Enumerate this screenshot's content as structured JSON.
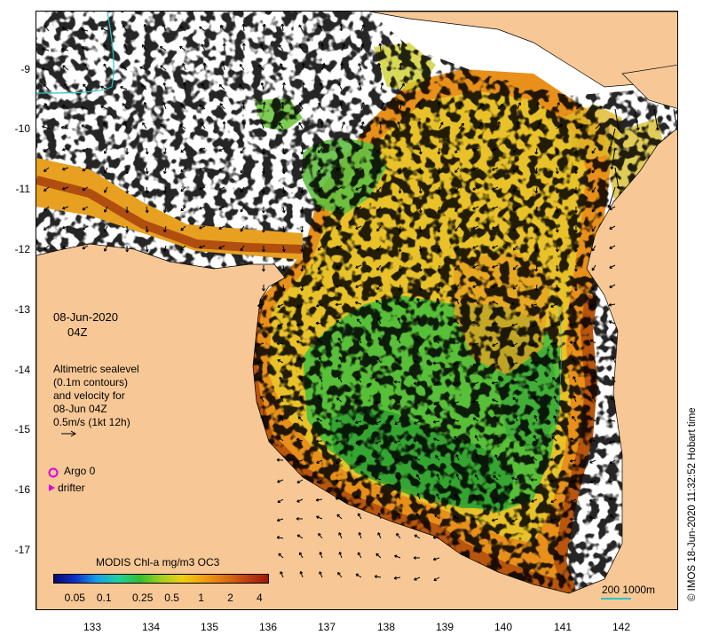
{
  "map": {
    "lon_range": [
      132.0,
      143.0
    ],
    "lat_range": [
      -17.8,
      -8.0
    ],
    "x_tick_labels": [
      "133",
      "134",
      "135",
      "136",
      "137",
      "138",
      "139",
      "140",
      "141",
      "142"
    ],
    "y_tick_labels": [
      "-9",
      "-10",
      "-11",
      "-12",
      "-13",
      "-14",
      "-15",
      "-16",
      "-17"
    ],
    "land_color": "#f7c896",
    "ocean_color": "#ffffff",
    "arrow_color": "#000000",
    "contour_color": "#29c4c4"
  },
  "annotations": {
    "date": "08-Jun-2020",
    "time": "04Z",
    "legend_line1": "Altimetric sealevel",
    "legend_line2": "(0.1m contours)",
    "legend_line3": "and velocity for",
    "legend_line4": "08-Jun 04Z",
    "legend_line5": "0.5m/s (1kt 12h)",
    "argo_label": "Argo 0",
    "drifter_label": "drifter",
    "argo_icon": "magenta-circle-icon",
    "drifter_icon": "magenta-triangle-icon"
  },
  "colorbar": {
    "title": "MODIS Chl-a mg/m3 OC3",
    "tick_labels": [
      "0.05",
      "0.1",
      "0.25",
      "0.5",
      "1",
      "2",
      "4"
    ],
    "tick_values": [
      0.05,
      0.1,
      0.25,
      0.5,
      1,
      2,
      4
    ],
    "range": [
      0.03,
      5
    ],
    "scale": "log",
    "colors": [
      "#08086e",
      "#1030c8",
      "#18a0e8",
      "#20d0a0",
      "#30c030",
      "#a0d020",
      "#f0d010",
      "#f0a010",
      "#e07010",
      "#c04010",
      "#a01808"
    ]
  },
  "scale_bar": {
    "label": "200  1000m"
  },
  "credit": "© IMOS 18-Jun-2020 11:32:52 Hobart time"
}
